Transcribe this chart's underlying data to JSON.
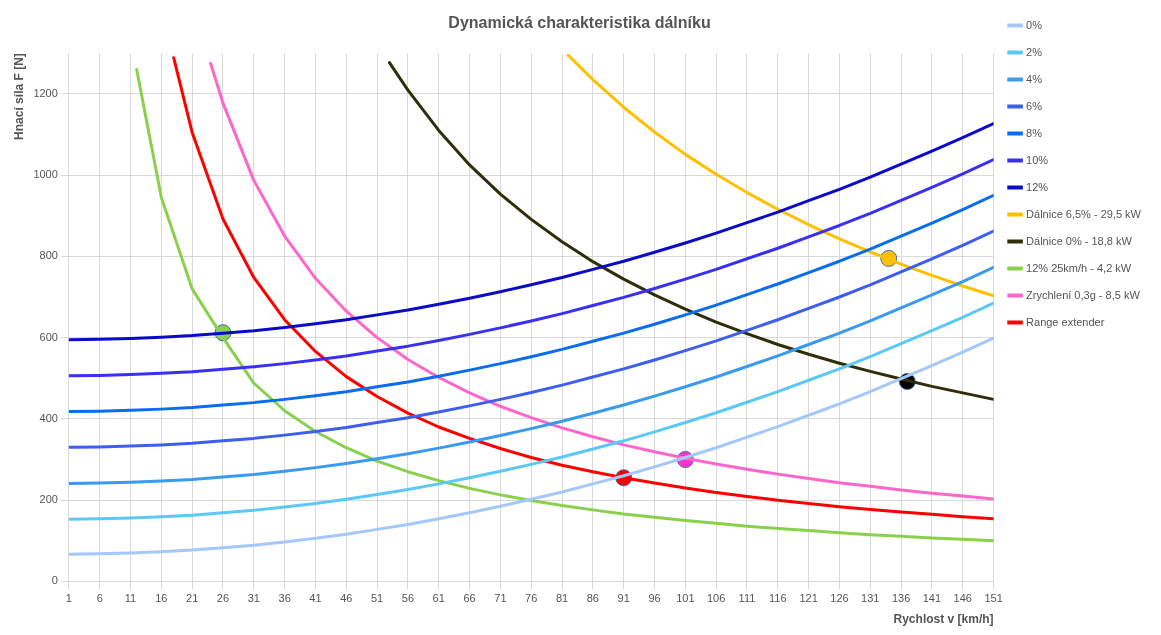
{
  "chart_data": {
    "type": "line",
    "title": "Dynamická charakteristika dálníku",
    "xlabel": "Rychlost v [km/h]",
    "ylabel": "Hnací síla F [N]",
    "x": [
      1,
      6,
      11,
      16,
      21,
      26,
      31,
      36,
      41,
      46,
      51,
      56,
      61,
      66,
      71,
      76,
      81,
      86,
      91,
      96,
      101,
      106,
      111,
      116,
      121,
      126,
      131,
      136,
      141,
      146,
      151
    ],
    "xlim": [
      1,
      151
    ],
    "xticks": [
      1,
      6,
      11,
      16,
      21,
      26,
      31,
      36,
      41,
      46,
      51,
      56,
      61,
      66,
      71,
      76,
      81,
      86,
      91,
      96,
      101,
      106,
      111,
      116,
      121,
      126,
      131,
      136,
      141,
      146,
      151
    ],
    "ylim": [
      0,
      1300
    ],
    "yticks": [
      0,
      200,
      400,
      600,
      800,
      1000,
      1200
    ],
    "grid": true,
    "legend": "right",
    "marker": "none",
    "line_style": "solid",
    "series": [
      {
        "name": "0%",
        "color": "#a4c8fb",
        "values": [
          67,
          68,
          70,
          73,
          77,
          83,
          89,
          97,
          106,
          116,
          128,
          140,
          154,
          169,
          185,
          202,
          220,
          240,
          260,
          282,
          305,
          329,
          355,
          381,
          409,
          437,
          467,
          499,
          531,
          564,
          599
        ]
      },
      {
        "name": "2%",
        "color": "#5bc8f5",
        "values": [
          153,
          154,
          156,
          159,
          163,
          169,
          175,
          183,
          192,
          202,
          214,
          226,
          240,
          255,
          271,
          288,
          306,
          326,
          346,
          368,
          391,
          415,
          441,
          467,
          495,
          523,
          553,
          585,
          617,
          650,
          685
        ]
      },
      {
        "name": "4%",
        "color": "#3a9af0",
        "values": [
          241,
          242,
          244,
          247,
          251,
          257,
          263,
          271,
          280,
          290,
          302,
          314,
          328,
          343,
          359,
          376,
          394,
          414,
          434,
          456,
          479,
          503,
          529,
          555,
          583,
          611,
          641,
          673,
          705,
          738,
          773
        ]
      },
      {
        "name": "6%",
        "color": "#3d5ef0",
        "values": [
          330,
          331,
          333,
          336,
          340,
          346,
          352,
          360,
          369,
          379,
          391,
          403,
          417,
          432,
          448,
          465,
          483,
          503,
          523,
          545,
          568,
          592,
          618,
          644,
          672,
          700,
          730,
          762,
          794,
          827,
          862
        ]
      },
      {
        "name": "8%",
        "color": "#0a6cf0",
        "values": [
          418,
          419,
          421,
          424,
          428,
          434,
          440,
          448,
          457,
          467,
          479,
          491,
          505,
          520,
          536,
          553,
          571,
          591,
          611,
          633,
          656,
          680,
          706,
          732,
          760,
          788,
          818,
          850,
          882,
          915,
          950
        ]
      },
      {
        "name": "10%",
        "color": "#3a30f5",
        "values": [
          506,
          507,
          509,
          512,
          516,
          522,
          528,
          536,
          545,
          555,
          567,
          579,
          593,
          608,
          624,
          641,
          659,
          679,
          699,
          721,
          744,
          768,
          794,
          820,
          848,
          876,
          906,
          938,
          970,
          1003,
          1038
        ]
      },
      {
        "name": "12%",
        "color": "#0a0ac8",
        "values": [
          595,
          596,
          598,
          601,
          605,
          611,
          617,
          625,
          634,
          644,
          656,
          668,
          682,
          697,
          713,
          730,
          748,
          768,
          788,
          810,
          833,
          857,
          883,
          909,
          937,
          965,
          995,
          1027,
          1059,
          1092,
          1127
        ]
      },
      {
        "name": "Dálnice 6,5% - 29,5 kW",
        "color": "#ffc000",
        "x": [
          82,
          86,
          91,
          96,
          101,
          106,
          111,
          116,
          121,
          126,
          131,
          136,
          141,
          146,
          151
        ],
        "values": [
          1295,
          1235,
          1167,
          1106,
          1051,
          1002,
          957,
          916,
          878,
          843,
          811,
          781,
          753,
          727,
          703
        ]
      },
      {
        "name": "Dálnice 0% - 18,8 kW",
        "color": "#2e2e0a",
        "x": [
          53,
          56,
          61,
          66,
          71,
          76,
          81,
          86,
          91,
          96,
          101,
          106,
          111,
          116,
          121,
          126,
          131,
          136,
          141,
          146,
          151
        ],
        "values": [
          1277,
          1209,
          1110,
          1025,
          953,
          891,
          836,
          787,
          744,
          705,
          670,
          638,
          610,
          583,
          559,
          537,
          517,
          498,
          480,
          464,
          448
        ]
      },
      {
        "name": "12% 25km/h - 4,2 kW",
        "color": "#8bd04d",
        "x": [
          12,
          16,
          21,
          26,
          31,
          36,
          41,
          46,
          51,
          56,
          61,
          66,
          71,
          76,
          81,
          86,
          91,
          96,
          101,
          106,
          111,
          116,
          121,
          126,
          131,
          136,
          141,
          146,
          151
        ],
        "values": [
          1260,
          945,
          720,
          600,
          488,
          420,
          369,
          329,
          296,
          270,
          248,
          229,
          213,
          199,
          187,
          176,
          166,
          158,
          150,
          143,
          136,
          130,
          125,
          120,
          115,
          111,
          107,
          104,
          100
        ]
      },
      {
        "name": "Zrychlení 0,3g - 8,5 kW",
        "color": "#ff66cc",
        "x": [
          24,
          26,
          31,
          36,
          41,
          46,
          51,
          56,
          61,
          66,
          71,
          76,
          81,
          86,
          91,
          96,
          101,
          106,
          111,
          116,
          121,
          126,
          131,
          136,
          141,
          146,
          151
        ],
        "values": [
          1275,
          1177,
          987,
          850,
          746,
          665,
          600,
          546,
          502,
          464,
          431,
          403,
          378,
          356,
          336,
          319,
          303,
          289,
          276,
          264,
          253,
          243,
          234,
          225,
          217,
          210,
          203
        ]
      },
      {
        "name": "Range extender",
        "color": "#ff0000",
        "x": [
          18,
          21,
          26,
          31,
          36,
          41,
          46,
          51,
          56,
          61,
          66,
          71,
          76,
          81,
          86,
          91,
          96,
          101,
          106,
          111,
          116,
          121,
          126,
          131,
          136,
          141,
          146,
          151
        ],
        "values": [
          1289,
          1105,
          892,
          748,
          644,
          566,
          504,
          455,
          414,
          380,
          352,
          327,
          305,
          286,
          270,
          255,
          242,
          230,
          219,
          209,
          200,
          192,
          184,
          177,
          171,
          165,
          159,
          154
        ]
      },
      {
        "type": "scatter",
        "marker": "circle",
        "color": "#8bd04d",
        "x": [
          26
        ],
        "values": [
          612
        ]
      },
      {
        "type": "scatter",
        "marker": "circle",
        "color": "#ff0000",
        "x": [
          91
        ],
        "values": [
          255
        ]
      },
      {
        "type": "scatter",
        "marker": "circle",
        "color": "#ff33cc",
        "x": [
          101
        ],
        "values": [
          300
        ]
      },
      {
        "type": "scatter",
        "marker": "circle",
        "color": "#ffc000",
        "x": [
          134
        ],
        "values": [
          795
        ]
      },
      {
        "type": "scatter",
        "marker": "circle",
        "color": "#000000",
        "x": [
          137
        ],
        "values": [
          492
        ]
      }
    ]
  }
}
